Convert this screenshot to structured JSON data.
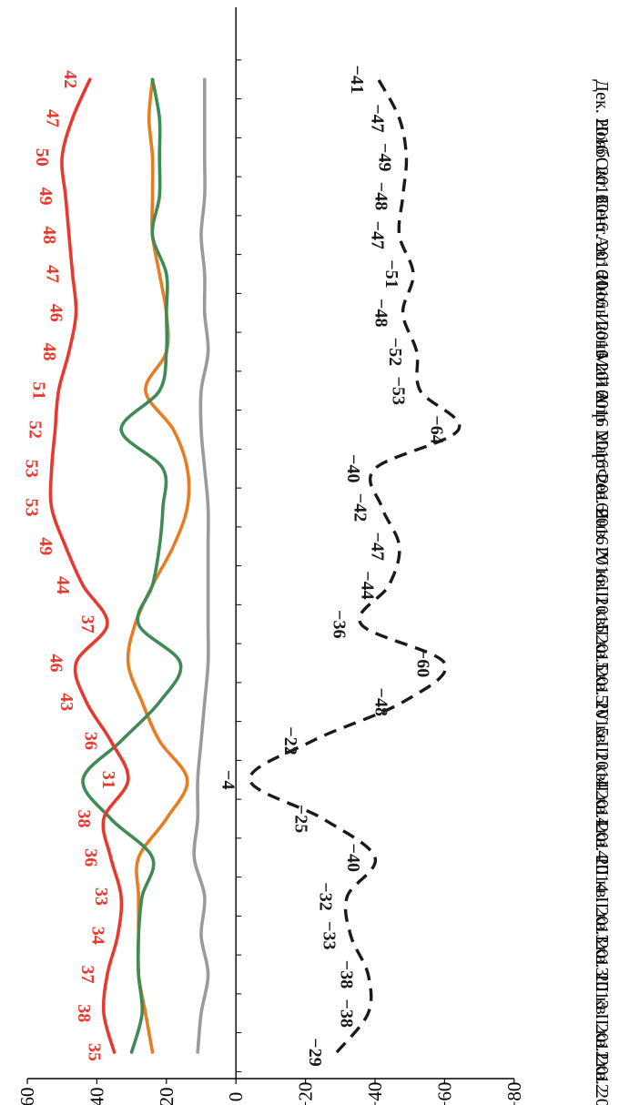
{
  "chart_data": {
    "type": "line",
    "orientation": "rotated-90-clockwise",
    "categories": [
      "I кв. 2012",
      "II кв. 2012",
      "III кв. 2012",
      "I кв. 2013",
      "II кв. 2013",
      "III кв. 2013",
      "I кв. 2014",
      "II кв. 2014",
      "III кв. 2014",
      "IV кв. 2014",
      "I кв. 2015",
      "II кв. 2015",
      "III кв. 2015",
      "IV кв. 2015",
      "Янв. 2016",
      "Фев. 2016",
      "Март 2016",
      "Апр. 2016",
      "Май 2016",
      "Июнь 2016",
      "Июль 2016",
      "Авг. 2016",
      "Сент. 2016",
      "Окт. 2016",
      "Нояб. 2016",
      "Дек. 2016"
    ],
    "value_axis": {
      "ylim": [
        -80,
        60
      ],
      "ticks": [
        60,
        40,
        20,
        0,
        -20,
        -40,
        -60,
        -80
      ]
    },
    "series": [
      {
        "color": "#e8392f",
        "labelled": true,
        "label_color": "#e8392f",
        "values": [
          35,
          38,
          37,
          34,
          33,
          36,
          38,
          31,
          36,
          43,
          46,
          37,
          44,
          49,
          53,
          53,
          52,
          51,
          48,
          46,
          47,
          48,
          49,
          50,
          47,
          42
        ]
      },
      {
        "color": "#3f8a57",
        "labelled": false,
        "values": [
          30,
          27,
          28,
          28,
          27,
          24,
          36,
          44,
          33,
          22,
          16,
          28,
          24,
          22,
          21,
          21,
          33,
          22,
          20,
          20,
          20,
          24,
          22,
          22,
          22,
          24
        ]
      },
      {
        "color": "#e87c22",
        "labelled": false,
        "values": [
          24,
          26,
          28,
          28,
          28,
          28,
          20,
          14,
          22,
          27,
          31,
          29,
          24,
          18,
          14,
          14,
          18,
          26,
          20,
          20,
          22,
          24,
          24,
          24,
          25,
          24
        ]
      },
      {
        "color": "#9a9a9a",
        "labelled": false,
        "values": [
          11,
          10,
          8,
          10,
          9,
          12,
          11,
          11,
          10,
          9,
          8,
          8,
          8,
          8,
          8,
          9,
          10,
          10,
          8,
          9,
          9,
          10,
          9,
          9,
          9,
          9
        ]
      },
      {
        "color": "#1a1a1a",
        "dashed": true,
        "labelled": true,
        "label_color": "#1a1a1a",
        "values": [
          -29,
          -38,
          -38,
          -33,
          -32,
          -40,
          -25,
          -4,
          -22,
          -48,
          -60,
          -36,
          -44,
          -47,
          -42,
          -40,
          -64,
          -53,
          -52,
          -48,
          -51,
          -47,
          -48,
          -49,
          -47,
          -41
        ]
      }
    ]
  }
}
